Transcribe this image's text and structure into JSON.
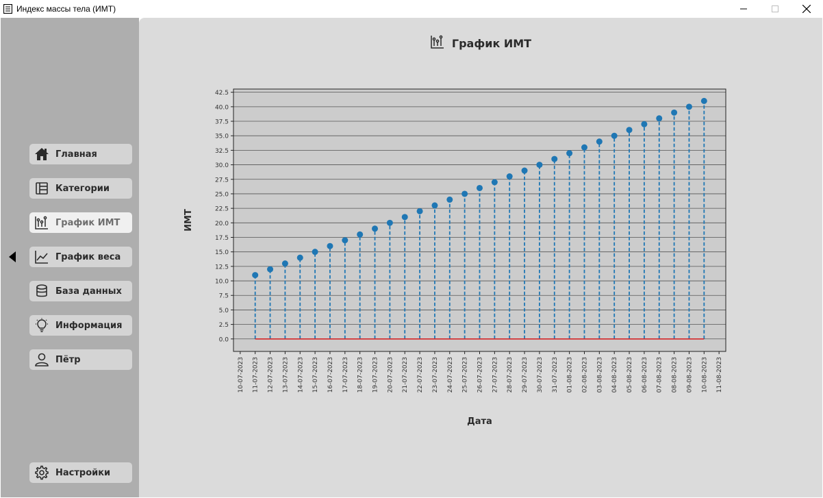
{
  "window": {
    "title": "Индекс массы тела (ИМТ)",
    "minimize_icon": "minimize-icon",
    "maximize_icon": "maximize-icon",
    "close_icon": "close-icon"
  },
  "sidebar": {
    "items": [
      {
        "label": "Главная",
        "icon": "home-icon"
      },
      {
        "label": "Категории",
        "icon": "categories-icon"
      },
      {
        "label": "График ИМТ",
        "icon": "bmi-chart-icon"
      },
      {
        "label": "График веса",
        "icon": "weight-chart-icon"
      },
      {
        "label": "База данных",
        "icon": "database-icon"
      },
      {
        "label": "Информация",
        "icon": "lightbulb-icon"
      },
      {
        "label": "Пётр",
        "icon": "user-icon"
      }
    ],
    "settings": {
      "label": "Настройки",
      "icon": "gear-icon"
    },
    "active_index": 2
  },
  "main": {
    "title": "График ИМТ",
    "title_icon": "bmi-chart-icon"
  },
  "chart_data": {
    "type": "scatter",
    "style": "stem",
    "xlabel": "Дата",
    "ylabel": "ИМТ",
    "x": [
      "11-07-2023",
      "12-07-2023",
      "13-07-2023",
      "14-07-2023",
      "15-07-2023",
      "16-07-2023",
      "17-07-2023",
      "18-07-2023",
      "19-07-2023",
      "20-07-2023",
      "21-07-2023",
      "22-07-2023",
      "23-07-2023",
      "24-07-2023",
      "25-07-2023",
      "26-07-2023",
      "27-07-2023",
      "28-07-2023",
      "29-07-2023",
      "30-07-2023",
      "31-07-2023",
      "01-08-2023",
      "02-08-2023",
      "03-08-2023",
      "04-08-2023",
      "05-08-2023",
      "06-08-2023",
      "07-08-2023",
      "08-08-2023",
      "09-08-2023",
      "10-08-2023"
    ],
    "values": [
      11,
      12,
      13,
      14,
      15,
      16,
      17,
      18,
      19,
      20,
      21,
      22,
      23,
      24,
      25,
      26,
      27,
      28,
      29,
      30,
      31,
      32,
      33,
      34,
      35,
      36,
      37,
      38,
      39,
      40,
      41
    ],
    "x_tick_labels": [
      "10-07-2023",
      "11-07-2023",
      "12-07-2023",
      "13-07-2023",
      "14-07-2023",
      "15-07-2023",
      "16-07-2023",
      "17-07-2023",
      "18-07-2023",
      "19-07-2023",
      "20-07-2023",
      "21-07-2023",
      "22-07-2023",
      "23-07-2023",
      "24-07-2023",
      "25-07-2023",
      "26-07-2023",
      "27-07-2023",
      "28-07-2023",
      "29-07-2023",
      "30-07-2023",
      "31-07-2023",
      "01-08-2023",
      "02-08-2023",
      "03-08-2023",
      "04-08-2023",
      "05-08-2023",
      "06-08-2023",
      "07-08-2023",
      "08-08-2023",
      "09-08-2023",
      "10-08-2023",
      "11-08-2023"
    ],
    "y_ticks": [
      "0.0",
      "2.5",
      "5.0",
      "7.5",
      "10.0",
      "12.5",
      "15.0",
      "17.5",
      "20.0",
      "22.5",
      "25.0",
      "27.5",
      "30.0",
      "32.5",
      "35.0",
      "37.5",
      "40.0",
      "42.5"
    ],
    "xlim": [
      "10-07-2023",
      "11-08-2023"
    ],
    "ylim": [
      -2.15,
      43.05
    ],
    "grid": "horizontal",
    "colors": {
      "marker": "#1f77b4",
      "stem": "#1f77b4",
      "baseline": "#d62728",
      "plot_bg": "#cccccc",
      "grid": "#555555"
    }
  }
}
